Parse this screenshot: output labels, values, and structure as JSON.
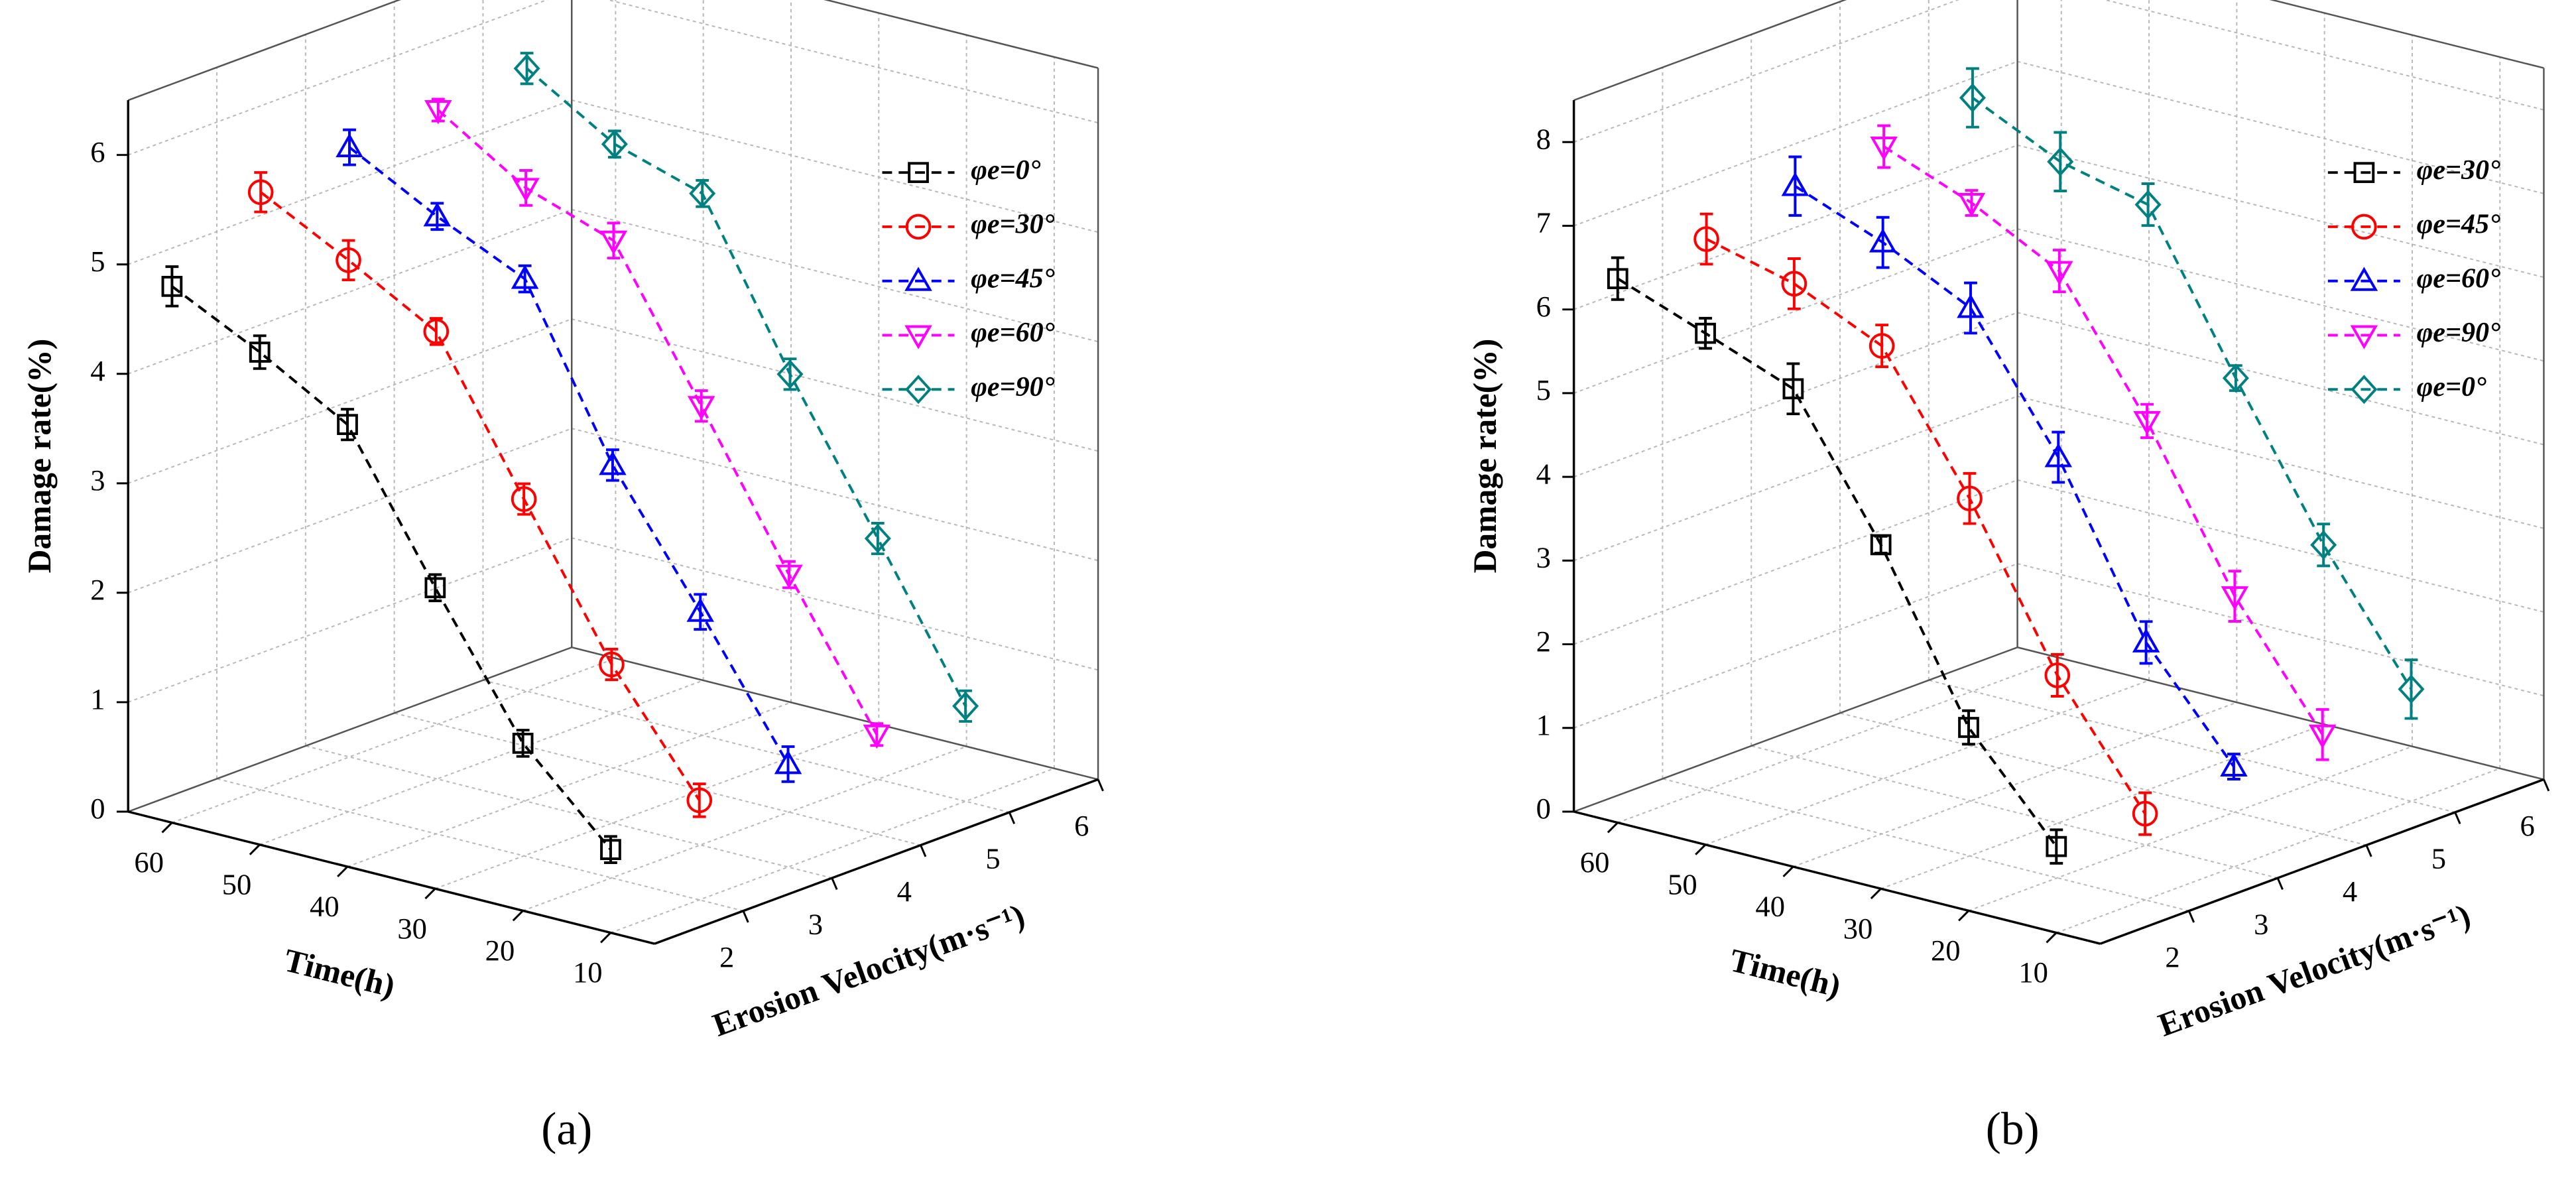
{
  "chart_data": [
    {
      "type": "scatter3d",
      "caption": "(a)",
      "xlabel": "Time(h)",
      "ylabel": "Erosion Velocity(m·s⁻¹)",
      "zlabel": "Damage rate(%)",
      "xlim": [
        65,
        5
      ],
      "ylim": [
        1,
        6
      ],
      "zlim": [
        0,
        6.5
      ],
      "xticks": [
        60,
        50,
        40,
        30,
        20,
        10
      ],
      "yticks": [
        2,
        3,
        4,
        5,
        6
      ],
      "zticks": [
        0,
        1,
        2,
        3,
        4,
        5,
        6
      ],
      "grid": true,
      "legend": "upper right",
      "x": [
        60,
        50,
        40,
        30,
        20,
        10
      ],
      "series": [
        {
          "name": "φe=0°",
          "color": "#000000",
          "marker": "square",
          "y": [
            1,
            1,
            1,
            1,
            1,
            1
          ],
          "values": [
            4.9,
            4.5,
            4.04,
            2.75,
            1.53,
            0.76
          ],
          "errors": [
            0.18,
            0.15,
            0.14,
            0.12,
            0.12,
            0.12
          ]
        },
        {
          "name": "φe=30°",
          "color": "#ff0000",
          "marker": "circle",
          "y": [
            2,
            2,
            2,
            2,
            2,
            2
          ],
          "values": [
            5.46,
            5.04,
            4.59,
            3.26,
            1.95,
            0.91
          ],
          "errors": [
            0.18,
            0.18,
            0.12,
            0.14,
            0.14,
            0.15
          ]
        },
        {
          "name": "φe=45°",
          "color": "#0000ff",
          "marker": "triangle-up",
          "y": [
            3,
            3,
            3,
            3,
            3,
            3
          ],
          "values": [
            5.57,
            5.14,
            4.77,
            3.27,
            2.13,
            0.94
          ],
          "errors": [
            0.16,
            0.12,
            0.12,
            0.14,
            0.16,
            0.16
          ]
        },
        {
          "name": "φe=60°",
          "color": "#ff00ff",
          "marker": "triangle-down",
          "y": [
            4,
            4,
            4,
            4,
            4,
            4
          ],
          "values": [
            5.61,
            5.1,
            4.82,
            3.51,
            2.17,
            0.91
          ],
          "errors": [
            0.1,
            0.16,
            0.16,
            0.14,
            0.12,
            0.1
          ]
        },
        {
          "name": "φe=90°",
          "color": "#008080",
          "marker": "diamond",
          "y": [
            5,
            5,
            5,
            5,
            5,
            5
          ],
          "values": [
            5.69,
            5.2,
            4.95,
            3.5,
            2.2,
            0.87
          ],
          "errors": [
            0.14,
            0.12,
            0.12,
            0.14,
            0.14,
            0.14
          ]
        }
      ]
    },
    {
      "type": "scatter3d",
      "caption": "(b)",
      "xlabel": "Time(h)",
      "ylabel": "Erosion Velocity(m·s⁻¹)",
      "zlabel": "Damage rate(%)",
      "xlim": [
        65,
        5
      ],
      "ylim": [
        1,
        6
      ],
      "zlim": [
        0,
        8.5
      ],
      "xticks": [
        60,
        50,
        40,
        30,
        20,
        10
      ],
      "yticks": [
        2,
        3,
        4,
        5,
        6
      ],
      "zticks": [
        0,
        1,
        2,
        3,
        4,
        5,
        6,
        7,
        8
      ],
      "grid": true,
      "legend": "upper right",
      "x": [
        60,
        50,
        40,
        30,
        20,
        10
      ],
      "series": [
        {
          "name": "φe=30°",
          "color": "#000000",
          "marker": "square",
          "y": [
            1,
            1,
            1,
            1,
            1,
            1
          ],
          "values": [
            6.5,
            6.11,
            5.71,
            4.11,
            2.19,
            1.03
          ],
          "errors": [
            0.25,
            0.18,
            0.3,
            0.1,
            0.2,
            0.2
          ]
        },
        {
          "name": "φe=45°",
          "color": "#ff0000",
          "marker": "circle",
          "y": [
            2,
            2,
            2,
            2,
            2,
            2
          ],
          "values": [
            6.58,
            6.31,
            5.83,
            4.27,
            2.42,
            1.03
          ],
          "errors": [
            0.3,
            0.3,
            0.25,
            0.3,
            0.25,
            0.25
          ]
        },
        {
          "name": "φe=60°",
          "color": "#0000ff",
          "marker": "triangle-up",
          "y": [
            3,
            3,
            3,
            3,
            3,
            3
          ],
          "values": [
            6.82,
            6.41,
            5.89,
            4.37,
            2.42,
            1.2
          ],
          "errors": [
            0.35,
            0.3,
            0.3,
            0.3,
            0.25,
            0.15
          ]
        },
        {
          "name": "φe=90°",
          "color": "#ff00ff",
          "marker": "triangle-down",
          "y": [
            4,
            4,
            4,
            4,
            4,
            4
          ],
          "values": [
            6.9,
            6.49,
            5.94,
            4.41,
            2.58,
            1.19
          ],
          "errors": [
            0.25,
            0.15,
            0.25,
            0.2,
            0.3,
            0.3
          ]
        },
        {
          "name": "φe=0°",
          "color": "#008080",
          "marker": "diamond",
          "y": [
            5,
            5,
            5,
            5,
            5,
            5
          ],
          "values": [
            7.09,
            6.59,
            6.34,
            4.53,
            2.8,
            1.34
          ],
          "errors": [
            0.35,
            0.35,
            0.25,
            0.15,
            0.25,
            0.35
          ]
        }
      ]
    }
  ]
}
